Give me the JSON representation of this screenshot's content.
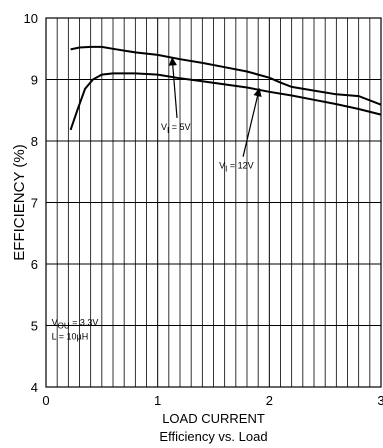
{
  "chart_data": {
    "type": "line",
    "title": "Efficiency vs. Load",
    "xlabel": "LOAD CURRENT",
    "ylabel": "EFFICIENCY (%)",
    "xlim": [
      0,
      3
    ],
    "ylim": [
      4,
      10
    ],
    "x_ticks": [
      0,
      1,
      2,
      3
    ],
    "x_tick_labels": [
      "0",
      "1",
      "2",
      "3"
    ],
    "y_ticks": [
      4,
      5,
      6,
      7,
      8,
      9,
      10
    ],
    "y_tick_labels": [
      "4",
      "5",
      "6",
      "7",
      "8",
      "9",
      "10"
    ],
    "grid": true,
    "series": [
      {
        "name": "VI = 5V",
        "x": [
          0.22,
          0.3,
          0.4,
          0.5,
          0.6,
          0.8,
          1.0,
          1.2,
          1.4,
          1.6,
          1.8,
          1.9,
          2.0,
          2.1,
          2.2,
          2.4,
          2.6,
          2.8,
          3.0
        ],
        "y": [
          9.49,
          9.52,
          9.53,
          9.53,
          9.5,
          9.44,
          9.4,
          9.33,
          9.27,
          9.2,
          9.13,
          9.08,
          9.03,
          8.95,
          8.88,
          8.82,
          8.76,
          8.73,
          8.59
        ]
      },
      {
        "name": "VI = 12V",
        "x": [
          0.22,
          0.28,
          0.35,
          0.42,
          0.5,
          0.6,
          0.8,
          1.0,
          1.2,
          1.4,
          1.6,
          1.8,
          2.0,
          2.2,
          2.4,
          2.6,
          2.8,
          3.0
        ],
        "y": [
          8.18,
          8.5,
          8.85,
          9.0,
          9.08,
          9.1,
          9.1,
          9.08,
          9.02,
          8.97,
          8.92,
          8.87,
          8.8,
          8.74,
          8.67,
          8.6,
          8.52,
          8.43
        ]
      }
    ],
    "annotations": [
      {
        "id": "vi5",
        "prefix": "V",
        "subscript": "I",
        "suffix": " = 5V",
        "x": 1.03,
        "y": 8.18,
        "arrow_to": [
          1.13,
          9.35
        ]
      },
      {
        "id": "vi12",
        "prefix": "V",
        "subscript": "I",
        "suffix": " = 12V",
        "x": 1.55,
        "y": 7.55,
        "arrow_to": [
          1.91,
          8.85
        ]
      },
      {
        "id": "conditions",
        "lines": [
          {
            "prefix": "V",
            "subscript": "OU",
            "suffix": " = 3.3V"
          },
          {
            "prefix": "L = 10µH",
            "subscript": "",
            "suffix": ""
          }
        ],
        "x": 0.05,
        "y": 5.0
      }
    ]
  }
}
